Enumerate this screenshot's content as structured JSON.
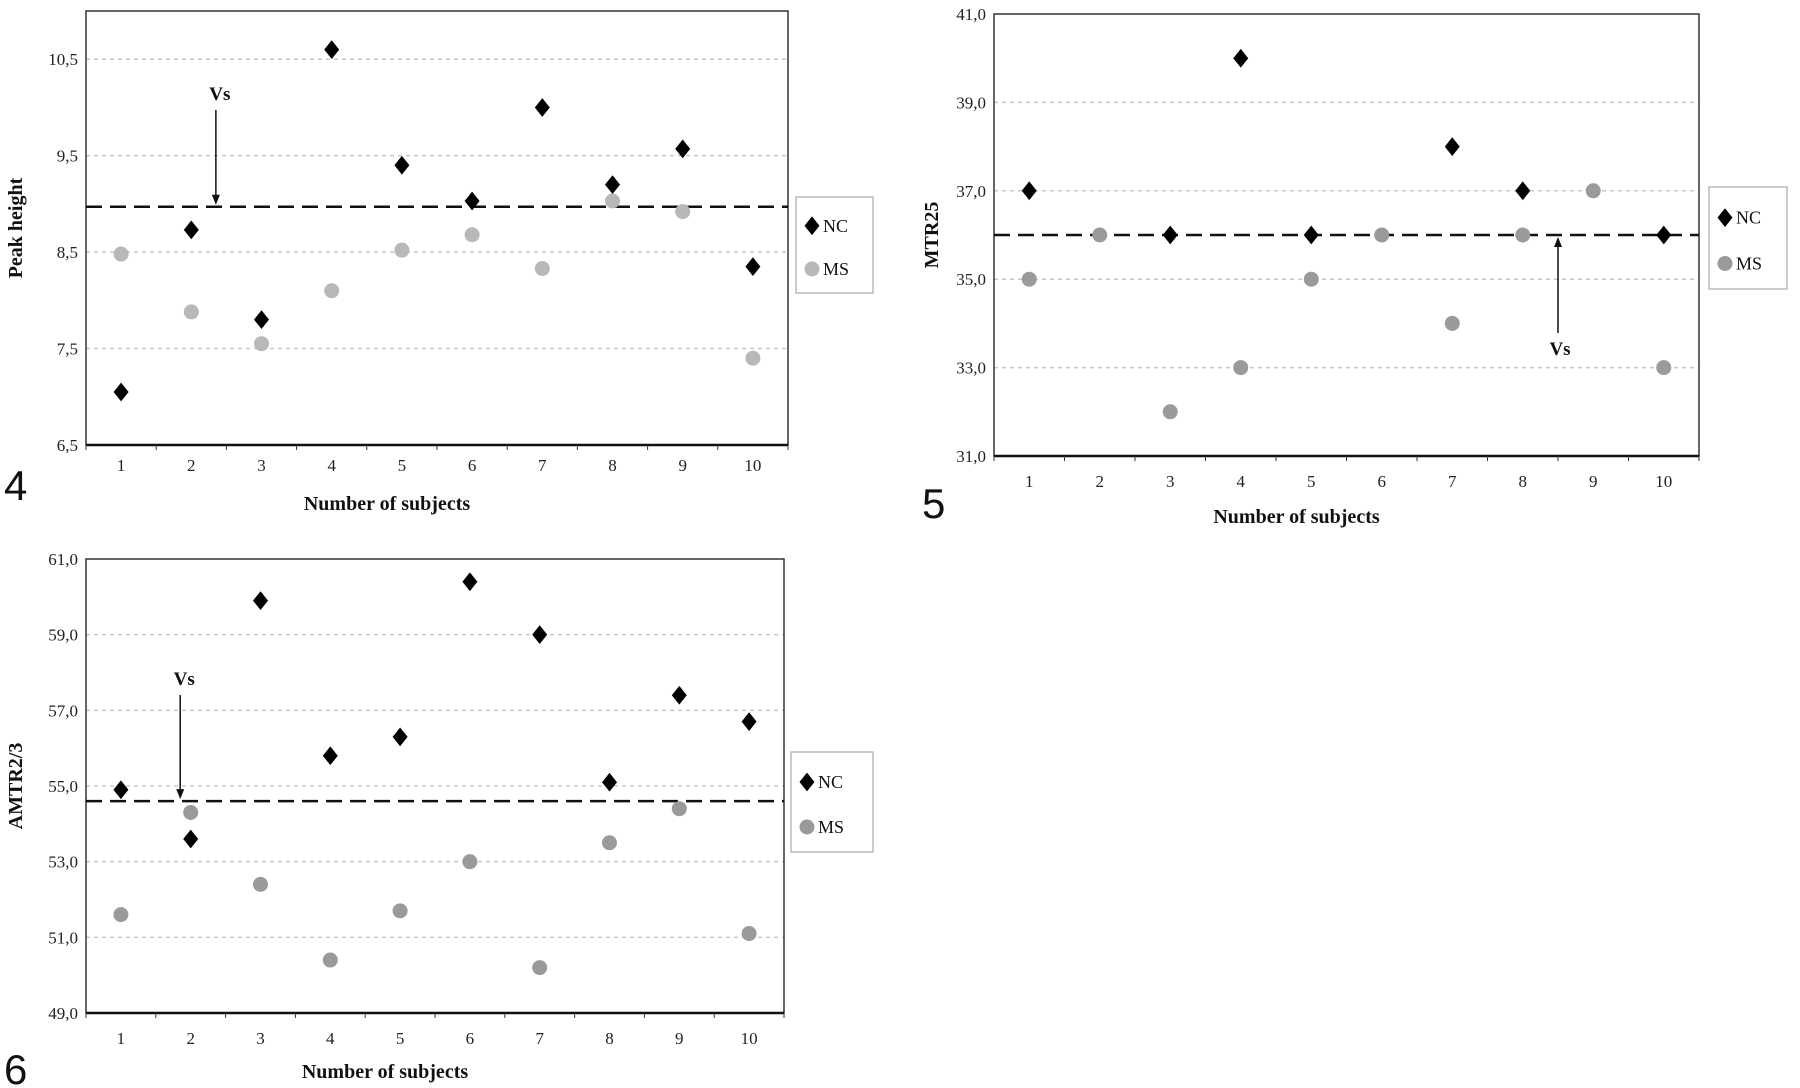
{
  "chart_data": [
    {
      "type": "scatter",
      "panel_label": "4",
      "xlabel": "Number of subjects",
      "ylabel": "Peak height",
      "categories": [
        "1",
        "2",
        "3",
        "4",
        "5",
        "6",
        "7",
        "8",
        "9",
        "10"
      ],
      "ylim": [
        6.5,
        11.0
      ],
      "yticks": [
        6.5,
        7.5,
        8.5,
        9.5,
        10.5
      ],
      "ytick_labels": [
        "6,5",
        "7,5",
        "8,5",
        "9,5",
        "10,5"
      ],
      "grid": true,
      "legend": "right",
      "series": [
        {
          "name": "NC",
          "marker": "diamond",
          "color": "#000000",
          "values": [
            7.05,
            8.73,
            7.8,
            10.6,
            9.4,
            9.03,
            10.0,
            9.2,
            9.57,
            8.35
          ]
        },
        {
          "name": "MS",
          "marker": "circle",
          "color": "#b8b8b8",
          "values": [
            8.48,
            7.88,
            7.55,
            8.1,
            8.52,
            8.68,
            8.33,
            9.03,
            8.92,
            7.4
          ]
        }
      ],
      "reference_line": {
        "label": "Vs",
        "value": 8.97,
        "arrow_x": 2.35,
        "arrow_direction": "down"
      }
    },
    {
      "type": "scatter",
      "panel_label": "5",
      "xlabel": "Number of subjects",
      "ylabel": "MTR25",
      "categories": [
        "1",
        "2",
        "3",
        "4",
        "5",
        "6",
        "7",
        "8",
        "9",
        "10"
      ],
      "ylim": [
        31.0,
        41.0
      ],
      "yticks": [
        31,
        33,
        35,
        37,
        39,
        41
      ],
      "ytick_labels": [
        "31,0",
        "33,0",
        "35,0",
        "37,0",
        "39,0",
        "41,0"
      ],
      "grid": true,
      "legend": "right",
      "series": [
        {
          "name": "NC",
          "marker": "diamond",
          "color": "#000000",
          "values": [
            37,
            null,
            36,
            40,
            36,
            null,
            38,
            37,
            null,
            36
          ]
        },
        {
          "name": "MS",
          "marker": "circle",
          "color": "#9a9a9a",
          "values": [
            35,
            36,
            32,
            33,
            35,
            36,
            34,
            36,
            37,
            33
          ]
        }
      ],
      "reference_line": {
        "label": "Vs",
        "value": 36.0,
        "arrow_x": 8.5,
        "arrow_direction": "up"
      }
    },
    {
      "type": "scatter",
      "panel_label": "6",
      "xlabel": "Number of subjects",
      "ylabel": "AMTR2/3",
      "categories": [
        "1",
        "2",
        "3",
        "4",
        "5",
        "6",
        "7",
        "8",
        "9",
        "10"
      ],
      "ylim": [
        49.0,
        61.0
      ],
      "yticks": [
        49,
        51,
        53,
        55,
        57,
        59,
        61
      ],
      "ytick_labels": [
        "49,0",
        "51,0",
        "53,0",
        "55,0",
        "57,0",
        "59,0",
        "61,0"
      ],
      "grid": true,
      "legend": "right",
      "series": [
        {
          "name": "NC",
          "marker": "diamond",
          "color": "#000000",
          "values": [
            54.9,
            53.6,
            59.9,
            55.8,
            56.3,
            60.4,
            59.0,
            55.1,
            57.4,
            56.7
          ]
        },
        {
          "name": "MS",
          "marker": "circle",
          "color": "#9a9a9a",
          "values": [
            51.6,
            54.3,
            52.4,
            50.4,
            51.7,
            53.0,
            50.2,
            53.5,
            54.4,
            51.1
          ]
        }
      ],
      "reference_line": {
        "label": "Vs",
        "value": 54.6,
        "arrow_x": 1.85,
        "arrow_direction": "down"
      }
    }
  ]
}
